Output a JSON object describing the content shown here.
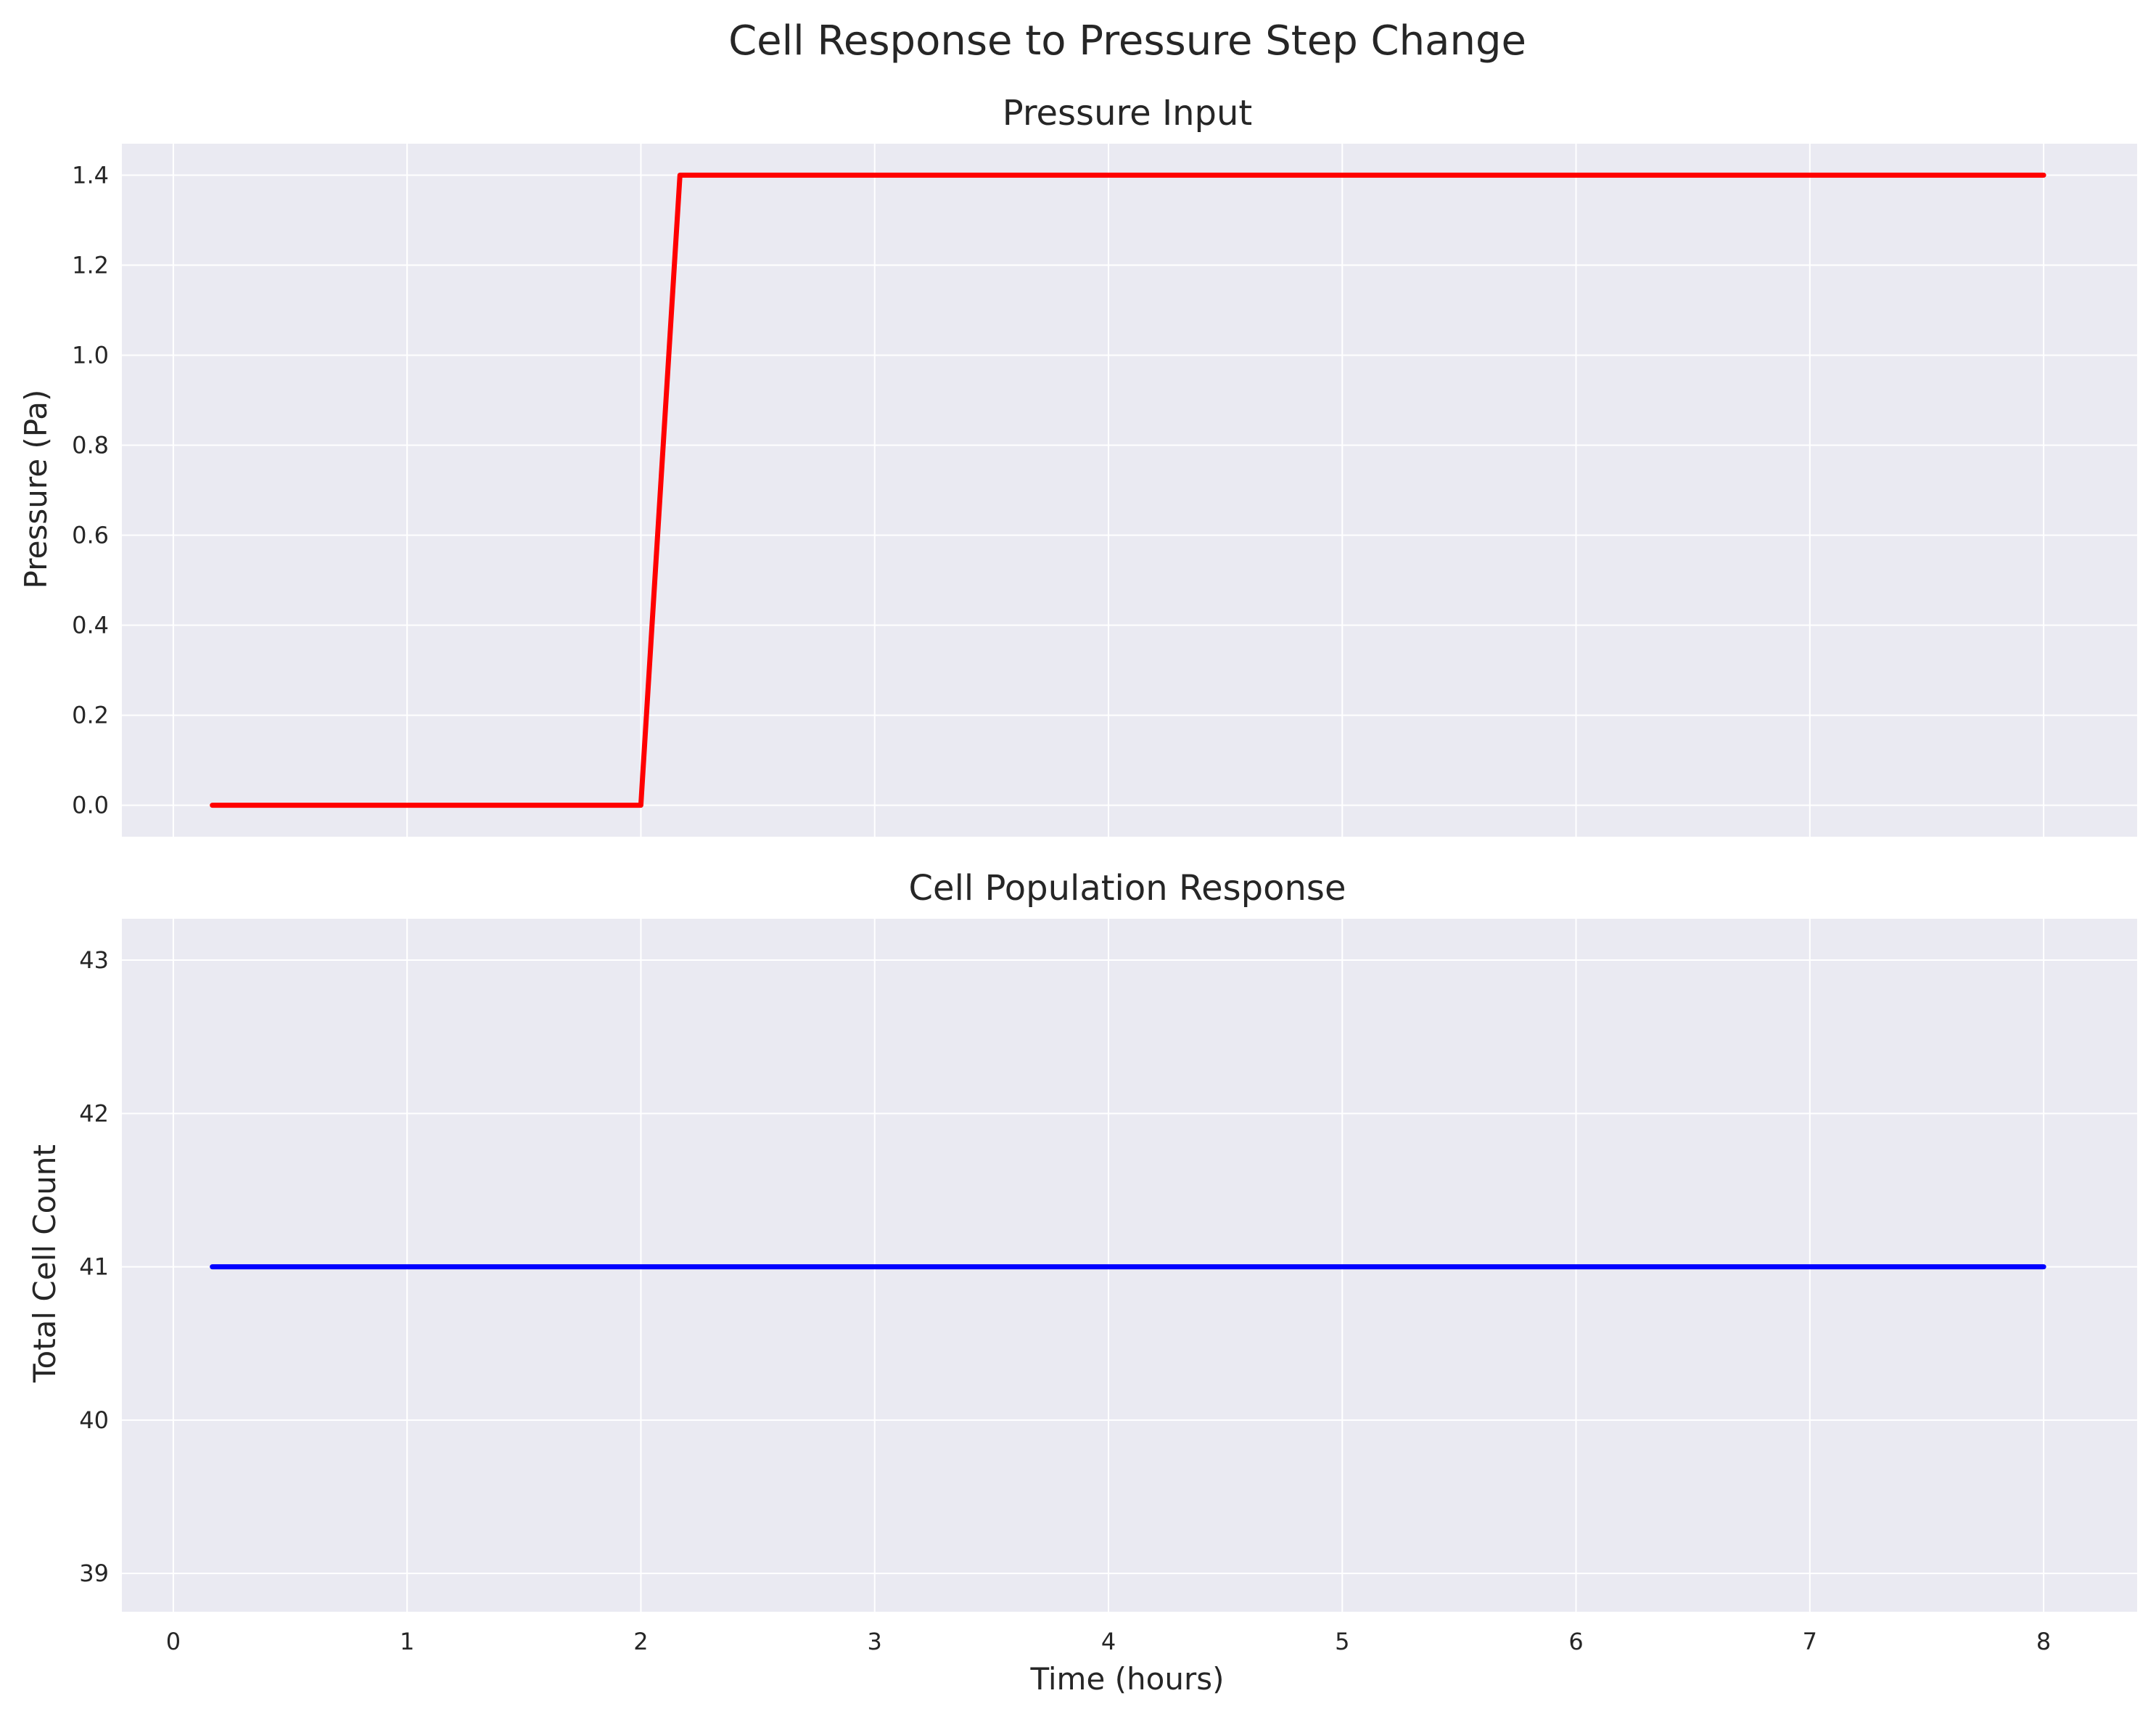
{
  "figure": {
    "title": "Cell Response to Pressure Step Change",
    "background": "#ffffff",
    "axes_facecolor": "#eaeaf2",
    "grid_color": "#ffffff"
  },
  "chart_data": [
    {
      "type": "line",
      "title": "Pressure Input",
      "xlabel": "",
      "ylabel": "Pressure (Pa)",
      "xlim": [
        -0.22,
        8.4
      ],
      "ylim": [
        -0.07,
        1.47
      ],
      "grid": true,
      "legend": "none",
      "xticks": [
        0,
        1,
        2,
        3,
        4,
        5,
        6,
        7,
        8
      ],
      "xtick_labels_visible": false,
      "yticks": [
        0.0,
        0.2,
        0.4,
        0.6,
        0.8,
        1.0,
        1.2,
        1.4
      ],
      "ytick_labels": [
        "0.0",
        "0.2",
        "0.4",
        "0.6",
        "0.8",
        "1.0",
        "1.2",
        "1.4"
      ],
      "series": [
        {
          "color": "#ff0000",
          "x": [
            0.167,
            0.5,
            1.0,
            1.5,
            2.0,
            2.167,
            3.0,
            4.0,
            5.0,
            6.0,
            7.0,
            8.0
          ],
          "y": [
            0.0,
            0.0,
            0.0,
            0.0,
            0.0,
            1.4,
            1.4,
            1.4,
            1.4,
            1.4,
            1.4,
            1.4
          ]
        }
      ]
    },
    {
      "type": "line",
      "title": "Cell Population Response",
      "xlabel": "Time (hours)",
      "ylabel": "Total Cell Count",
      "xlim": [
        -0.22,
        8.4
      ],
      "ylim": [
        38.75,
        43.27
      ],
      "grid": true,
      "legend": "none",
      "xticks": [
        0,
        1,
        2,
        3,
        4,
        5,
        6,
        7,
        8
      ],
      "xtick_labels": [
        "0",
        "1",
        "2",
        "3",
        "4",
        "5",
        "6",
        "7",
        "8"
      ],
      "yticks": [
        39,
        40,
        41,
        42,
        43
      ],
      "ytick_labels": [
        "39",
        "40",
        "41",
        "42",
        "43"
      ],
      "series": [
        {
          "color": "#0000ff",
          "x": [
            0.167,
            1.0,
            2.0,
            3.0,
            4.0,
            5.0,
            6.0,
            7.0,
            8.0
          ],
          "y": [
            41,
            41,
            41,
            41,
            41,
            41,
            41,
            41,
            41
          ]
        }
      ]
    }
  ]
}
